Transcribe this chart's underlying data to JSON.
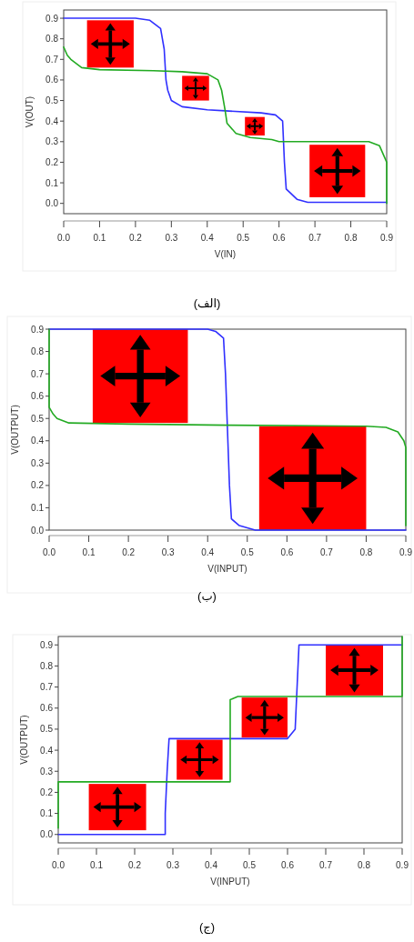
{
  "chart_data": [
    {
      "type": "line",
      "xlabel": "V(IN)",
      "ylabel": "V(OUT)",
      "annotations": [
        "(الف)"
      ],
      "xlim": [
        0,
        0.9
      ],
      "ylim": [
        -0.05,
        0.94
      ],
      "xticks": [
        {
          "value": 0,
          "label": "0.0"
        },
        {
          "value": 0.1,
          "label": "0.1"
        },
        {
          "value": 0.2,
          "label": "0.2"
        },
        {
          "value": 0.3,
          "label": "0.3"
        },
        {
          "value": 0.4,
          "label": "0.4"
        },
        {
          "value": 0.5,
          "label": "0.5"
        },
        {
          "value": 0.6,
          "label": "0.6"
        },
        {
          "value": 0.7,
          "label": "0.7"
        },
        {
          "value": 0.8,
          "label": "0.8"
        },
        {
          "value": 0.9,
          "label": "0.9"
        }
      ],
      "yticks": [
        {
          "value": 0,
          "label": "0.0"
        },
        {
          "value": 0.1,
          "label": "0.1"
        },
        {
          "value": 0.2,
          "label": "0.2"
        },
        {
          "value": 0.3,
          "label": "0.3"
        },
        {
          "value": 0.4,
          "label": "0.4"
        },
        {
          "value": 0.5,
          "label": "0.5"
        },
        {
          "value": 0.6,
          "label": "0.6"
        },
        {
          "value": 0.7,
          "label": "0.7"
        },
        {
          "value": 0.8,
          "label": "0.8"
        },
        {
          "value": 0.9,
          "label": "0.9"
        }
      ],
      "marker": "none",
      "line_style": "solid",
      "grid": false,
      "series": [
        {
          "color": "#3030ff",
          "x": [
            0,
            0.1,
            0.2,
            0.24,
            0.27,
            0.28,
            0.285,
            0.29,
            0.3,
            0.33,
            0.4,
            0.45,
            0.55,
            0.59,
            0.61,
            0.615,
            0.62,
            0.65,
            0.68,
            0.9
          ],
          "values": [
            0.9,
            0.9,
            0.9,
            0.89,
            0.85,
            0.75,
            0.6,
            0.55,
            0.5,
            0.47,
            0.455,
            0.45,
            0.44,
            0.43,
            0.4,
            0.2,
            0.07,
            0.02,
            0.005,
            0.005
          ]
        },
        {
          "color": "#22aa22",
          "x": [
            0,
            0.01,
            0.02,
            0.05,
            0.1,
            0.25,
            0.33,
            0.4,
            0.43,
            0.44,
            0.45,
            0.455,
            0.48,
            0.52,
            0.58,
            0.6,
            0.85,
            0.88,
            0.9,
            0.9
          ],
          "values": [
            0.76,
            0.72,
            0.7,
            0.66,
            0.65,
            0.645,
            0.64,
            0.63,
            0.6,
            0.55,
            0.45,
            0.39,
            0.34,
            0.32,
            0.31,
            0.3,
            0.3,
            0.28,
            0.2,
            0.0
          ]
        }
      ]
    },
    {
      "type": "line",
      "xlabel": "V(INPUT)",
      "ylabel": "V(OUTPUT)",
      "annotations": [
        "(ب)"
      ],
      "xlim": [
        0,
        0.9
      ],
      "ylim": [
        0,
        0.9
      ],
      "xticks": [
        {
          "value": 0,
          "label": "0.0"
        },
        {
          "value": 0.1,
          "label": "0.1"
        },
        {
          "value": 0.2,
          "label": "0.2"
        },
        {
          "value": 0.3,
          "label": "0.3"
        },
        {
          "value": 0.4,
          "label": "0.4"
        },
        {
          "value": 0.5,
          "label": "0.5"
        },
        {
          "value": 0.6,
          "label": "0.6"
        },
        {
          "value": 0.7,
          "label": "0.7"
        },
        {
          "value": 0.8,
          "label": "0.8"
        },
        {
          "value": 0.9,
          "label": "0.9"
        }
      ],
      "yticks": [
        {
          "value": 0,
          "label": "0.0"
        },
        {
          "value": 0.1,
          "label": "0.1"
        },
        {
          "value": 0.2,
          "label": "0.2"
        },
        {
          "value": 0.3,
          "label": "0.3"
        },
        {
          "value": 0.4,
          "label": "0.4"
        },
        {
          "value": 0.5,
          "label": "0.5"
        },
        {
          "value": 0.6,
          "label": "0.6"
        },
        {
          "value": 0.7,
          "label": "0.7"
        },
        {
          "value": 0.8,
          "label": "0.8"
        },
        {
          "value": 0.9,
          "label": "0.9"
        }
      ],
      "marker": "none",
      "line_style": "solid",
      "grid": false,
      "series": [
        {
          "color": "#3030ff",
          "x": [
            0,
            0.2,
            0.36,
            0.4,
            0.42,
            0.44,
            0.445,
            0.45,
            0.455,
            0.46,
            0.48,
            0.5,
            0.52,
            0.9
          ],
          "values": [
            0.9,
            0.9,
            0.9,
            0.9,
            0.89,
            0.86,
            0.7,
            0.45,
            0.2,
            0.05,
            0.02,
            0.01,
            0.0,
            0.0
          ]
        },
        {
          "color": "#22aa22",
          "x": [
            0,
            0,
            0.01,
            0.02,
            0.05,
            0.2,
            0.45,
            0.8,
            0.85,
            0.88,
            0.895,
            0.9,
            0.9
          ],
          "values": [
            0.9,
            0.55,
            0.52,
            0.5,
            0.48,
            0.475,
            0.47,
            0.465,
            0.46,
            0.44,
            0.4,
            0.37,
            0.02
          ]
        }
      ]
    },
    {
      "type": "line",
      "xlabel": "V(INPUT)",
      "ylabel": "V(OUTPUT)",
      "annotations": [
        "(ج)"
      ],
      "xlim": [
        0,
        0.9
      ],
      "ylim": [
        -0.04,
        0.94
      ],
      "xticks": [
        {
          "value": 0,
          "label": "0.0"
        },
        {
          "value": 0.1,
          "label": "0.1"
        },
        {
          "value": 0.2,
          "label": "0.2"
        },
        {
          "value": 0.3,
          "label": "0.3"
        },
        {
          "value": 0.4,
          "label": "0.4"
        },
        {
          "value": 0.5,
          "label": "0.5"
        },
        {
          "value": 0.6,
          "label": "0.6"
        },
        {
          "value": 0.7,
          "label": "0.7"
        },
        {
          "value": 0.8,
          "label": "0.8"
        },
        {
          "value": 0.9,
          "label": "0.9"
        }
      ],
      "yticks": [
        {
          "value": 0,
          "label": "0.0"
        },
        {
          "value": 0.1,
          "label": "0.1"
        },
        {
          "value": 0.2,
          "label": "0.2"
        },
        {
          "value": 0.3,
          "label": "0.3"
        },
        {
          "value": 0.4,
          "label": "0.4"
        },
        {
          "value": 0.5,
          "label": "0.5"
        },
        {
          "value": 0.6,
          "label": "0.6"
        },
        {
          "value": 0.7,
          "label": "0.7"
        },
        {
          "value": 0.8,
          "label": "0.8"
        },
        {
          "value": 0.9,
          "label": "0.9"
        }
      ],
      "marker": "none",
      "line_style": "solid",
      "grid": false,
      "series": [
        {
          "color": "#3030ff",
          "x": [
            0,
            0.28,
            0.28,
            0.285,
            0.29,
            0.6,
            0.62,
            0.63,
            0.9
          ],
          "values": [
            0,
            0,
            0.1,
            0.3,
            0.455,
            0.455,
            0.5,
            0.9,
            0.9
          ]
        },
        {
          "color": "#22aa22",
          "x": [
            0,
            0,
            0.45,
            0.45,
            0.47,
            0.7,
            0.9,
            0.9
          ],
          "values": [
            0.03,
            0.25,
            0.25,
            0.64,
            0.655,
            0.655,
            0.655,
            0.94
          ]
        }
      ]
    }
  ]
}
